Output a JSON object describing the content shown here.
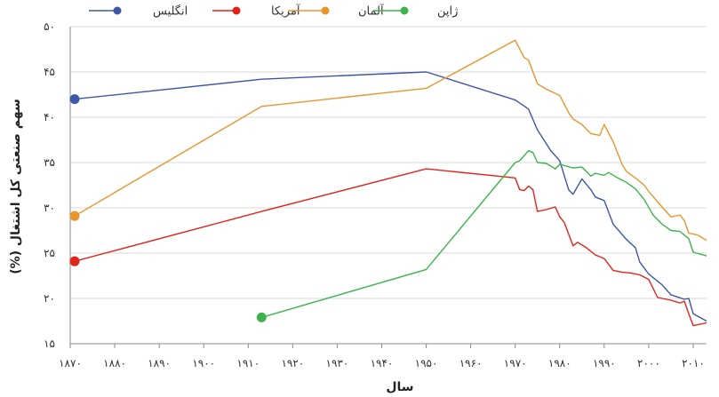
{
  "chart_data": {
    "type": "line",
    "xlabel": "سال",
    "ylabel": "سهم صنعتی کل اشتغال (%)",
    "xlim": [
      1870,
      2013
    ],
    "ylim": [
      15,
      50
    ],
    "x_ticks": [
      1870,
      1880,
      1890,
      1900,
      1910,
      1920,
      1930,
      1940,
      1950,
      1960,
      1970,
      1980,
      1990,
      2000,
      2010
    ],
    "x_tick_labels": [
      "۱۸۷۰",
      "۱۸۸۰",
      "۱۸۹۰",
      "۱۹۰۰",
      "۱۹۱۰",
      "۱۹۲۰",
      "۱۹۳۰",
      "۱۹۴۰",
      "۱۹۵۰",
      "۱۹۶۰",
      "۱۹۷۰",
      "۱۹۸۰",
      "۱۹۹۰",
      "۲۰۰۰",
      "۲۰۱۰"
    ],
    "y_ticks": [
      15,
      20,
      25,
      30,
      35,
      40,
      45,
      50
    ],
    "y_tick_labels": [
      "۱۵",
      "۲۰",
      "۲۵",
      "۳۰",
      "۳۵",
      "۴۰",
      "۴۵",
      "۵۰"
    ],
    "grid": "horizontal",
    "legend_position": "top",
    "series": [
      {
        "name": "انگلیس",
        "color": "#3f57a8",
        "points": [
          [
            1871,
            42.0
          ],
          [
            1913,
            44.2
          ],
          [
            1950,
            45.0
          ],
          [
            1970,
            41.9
          ],
          [
            1973,
            40.9
          ],
          [
            1975,
            38.6
          ],
          [
            1978,
            36.3
          ],
          [
            1980,
            35.2
          ],
          [
            1982,
            32.0
          ],
          [
            1983,
            31.5
          ],
          [
            1985,
            33.2
          ],
          [
            1987,
            32.0
          ],
          [
            1988,
            31.2
          ],
          [
            1990,
            30.8
          ],
          [
            1992,
            28.2
          ],
          [
            1995,
            26.5
          ],
          [
            1997,
            25.6
          ],
          [
            1998,
            24.0
          ],
          [
            2000,
            22.7
          ],
          [
            2003,
            21.5
          ],
          [
            2005,
            20.4
          ],
          [
            2008,
            19.9
          ],
          [
            2009,
            20.0
          ],
          [
            2010,
            18.3
          ],
          [
            2013,
            17.5
          ]
        ]
      },
      {
        "name": "آمریکا",
        "color": "#e2231a",
        "points": [
          [
            1871,
            24.1
          ],
          [
            1913,
            29.6
          ],
          [
            1950,
            34.3
          ],
          [
            1970,
            33.3
          ],
          [
            1971,
            32.0
          ],
          [
            1972,
            31.9
          ],
          [
            1973,
            32.4
          ],
          [
            1974,
            32.0
          ],
          [
            1975,
            29.6
          ],
          [
            1977,
            29.8
          ],
          [
            1979,
            30.1
          ],
          [
            1980,
            29.0
          ],
          [
            1981,
            28.4
          ],
          [
            1983,
            25.8
          ],
          [
            1984,
            26.2
          ],
          [
            1986,
            25.6
          ],
          [
            1988,
            24.8
          ],
          [
            1990,
            24.4
          ],
          [
            1992,
            23.1
          ],
          [
            1994,
            22.9
          ],
          [
            1996,
            22.8
          ],
          [
            1998,
            22.6
          ],
          [
            2000,
            22.1
          ],
          [
            2002,
            20.1
          ],
          [
            2005,
            19.8
          ],
          [
            2007,
            19.5
          ],
          [
            2008,
            19.7
          ],
          [
            2009,
            18.3
          ],
          [
            2010,
            17.0
          ],
          [
            2013,
            17.3
          ]
        ]
      },
      {
        "name": "آلمان",
        "color": "#e8952e",
        "points": [
          [
            1871,
            29.1
          ],
          [
            1913,
            41.2
          ],
          [
            1950,
            43.2
          ],
          [
            1970,
            48.5
          ],
          [
            1972,
            46.6
          ],
          [
            1973,
            46.3
          ],
          [
            1975,
            43.7
          ],
          [
            1977,
            43.1
          ],
          [
            1980,
            42.4
          ],
          [
            1982,
            40.5
          ],
          [
            1983,
            39.8
          ],
          [
            1985,
            39.2
          ],
          [
            1987,
            38.2
          ],
          [
            1989,
            38.0
          ],
          [
            1990,
            39.2
          ],
          [
            1992,
            37.3
          ],
          [
            1994,
            34.8
          ],
          [
            1995,
            34.0
          ],
          [
            1997,
            33.3
          ],
          [
            1999,
            32.5
          ],
          [
            2000,
            31.8
          ],
          [
            2003,
            30.1
          ],
          [
            2005,
            29.0
          ],
          [
            2007,
            29.2
          ],
          [
            2008,
            28.6
          ],
          [
            2009,
            27.2
          ],
          [
            2011,
            27.0
          ],
          [
            2013,
            26.4
          ]
        ]
      },
      {
        "name": "ژاپن",
        "color": "#3cb44b",
        "points": [
          [
            1913,
            17.9
          ],
          [
            1950,
            23.2
          ],
          [
            1970,
            35.0
          ],
          [
            1971,
            35.2
          ],
          [
            1973,
            36.3
          ],
          [
            1974,
            36.1
          ],
          [
            1975,
            35.0
          ],
          [
            1977,
            34.9
          ],
          [
            1979,
            34.3
          ],
          [
            1980,
            34.8
          ],
          [
            1983,
            34.4
          ],
          [
            1985,
            34.5
          ],
          [
            1987,
            33.5
          ],
          [
            1988,
            33.8
          ],
          [
            1990,
            33.6
          ],
          [
            1991,
            33.9
          ],
          [
            1993,
            33.3
          ],
          [
            1995,
            32.8
          ],
          [
            1997,
            32.1
          ],
          [
            1999,
            30.9
          ],
          [
            2001,
            29.2
          ],
          [
            2003,
            28.2
          ],
          [
            2005,
            27.5
          ],
          [
            2007,
            27.4
          ],
          [
            2009,
            26.6
          ],
          [
            2010,
            25.1
          ],
          [
            2013,
            24.7
          ]
        ]
      }
    ],
    "start_markers": [
      {
        "series": "انگلیس",
        "x": 1871,
        "y": 42.0
      },
      {
        "series": "آمریکا",
        "x": 1871,
        "y": 24.1
      },
      {
        "series": "آلمان",
        "x": 1871,
        "y": 29.1
      },
      {
        "series": "ژاپن",
        "x": 1913,
        "y": 17.9
      }
    ],
    "legend": [
      {
        "series": "انگلیس",
        "color": "#3f57a8"
      },
      {
        "series": "آمریکا",
        "color": "#e2231a"
      },
      {
        "series": "آلمان",
        "color": "#e8952e"
      },
      {
        "series": "ژاپن",
        "color": "#3cb44b"
      }
    ]
  }
}
